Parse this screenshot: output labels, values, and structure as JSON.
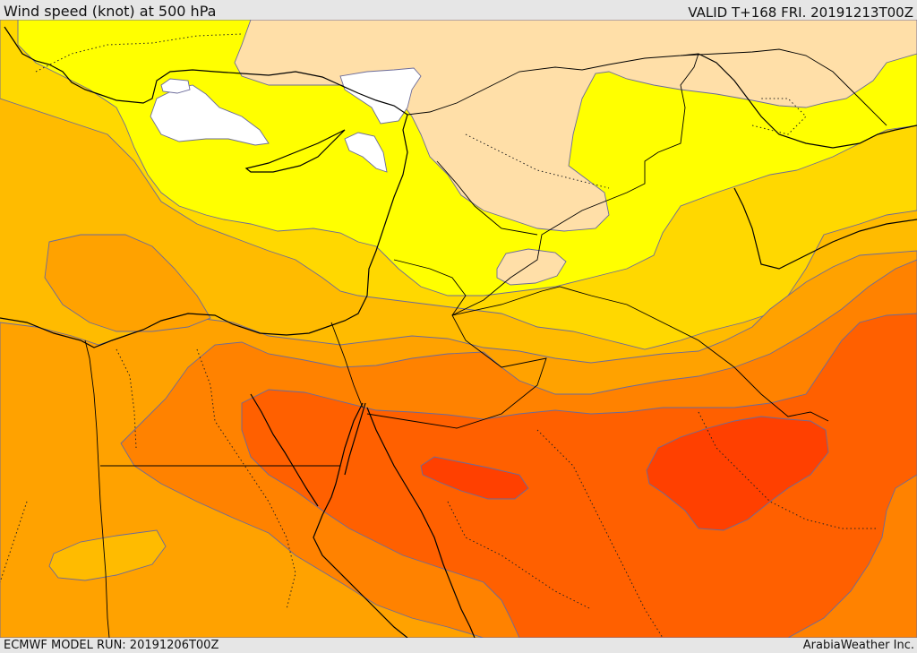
{
  "header": {
    "title": "Wind speed (knot) at 500 hPa",
    "valid": "VALID T+168 FRI. 20191213T00Z"
  },
  "footer": {
    "model_run": "ECMWF MODEL RUN: 20191206T00Z",
    "credit": "ArabiaWeather Inc."
  },
  "map": {
    "variable": "wind speed",
    "units": "knot",
    "level": "500 hPa",
    "fill_colors": {
      "white": "#ffffff",
      "peach": "#ffdfa8",
      "yellow": "#ffff00",
      "light_orange": "#ffd800",
      "amber": "#ffbb00",
      "orange": "#ffa200",
      "dark_orange": "#ff8200",
      "red_orange": "#ff6000",
      "red": "#ff4000"
    }
  }
}
